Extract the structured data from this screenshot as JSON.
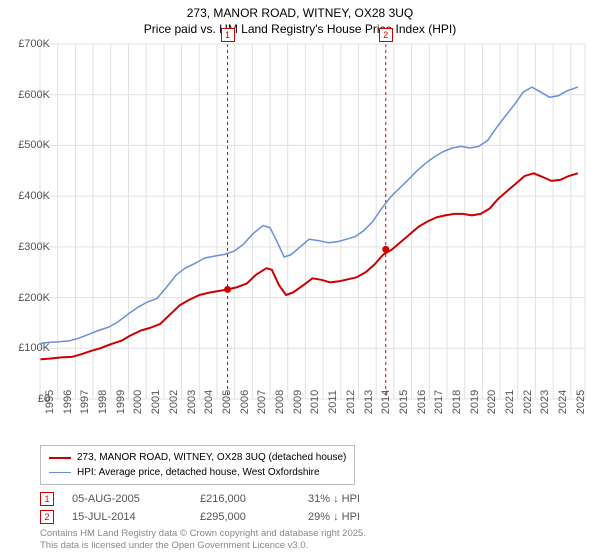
{
  "title": {
    "line1": "273, MANOR ROAD, WITNEY, OX28 3UQ",
    "line2": "Price paid vs. HM Land Registry's House Price Index (HPI)",
    "fontsize": 12
  },
  "chart": {
    "type": "line",
    "background_color": "#ffffff",
    "grid_color": "#e0e0e0",
    "x": {
      "min": 1995,
      "max": 2025.8,
      "ticks": [
        1995,
        1996,
        1997,
        1998,
        1999,
        2000,
        2001,
        2002,
        2003,
        2004,
        2005,
        2006,
        2007,
        2008,
        2009,
        2010,
        2011,
        2012,
        2013,
        2014,
        2015,
        2016,
        2017,
        2018,
        2019,
        2020,
        2021,
        2022,
        2023,
        2024,
        2025
      ],
      "label_fontsize": 11
    },
    "y": {
      "min": 0,
      "max": 700000,
      "ticks": [
        0,
        100000,
        200000,
        300000,
        400000,
        500000,
        600000,
        700000
      ],
      "tick_labels": [
        "£0",
        "£100K",
        "£200K",
        "£300K",
        "£400K",
        "£500K",
        "£600K",
        "£700K"
      ],
      "label_fontsize": 11
    },
    "series": [
      {
        "name": "price_paid",
        "label": "273, MANOR ROAD, WITNEY, OX28 3UQ (detached house)",
        "color": "#cc0000",
        "line_width": 2.0,
        "points": [
          [
            1995.0,
            78000
          ],
          [
            1995.7,
            80000
          ],
          [
            1996.2,
            82000
          ],
          [
            1996.8,
            83000
          ],
          [
            1997.3,
            88000
          ],
          [
            1997.9,
            95000
          ],
          [
            1998.4,
            100000
          ],
          [
            1999.0,
            108000
          ],
          [
            1999.6,
            115000
          ],
          [
            2000.1,
            125000
          ],
          [
            2000.7,
            135000
          ],
          [
            2001.2,
            140000
          ],
          [
            2001.8,
            148000
          ],
          [
            2002.3,
            165000
          ],
          [
            2002.9,
            185000
          ],
          [
            2003.4,
            195000
          ],
          [
            2004.0,
            205000
          ],
          [
            2004.6,
            210000
          ],
          [
            2005.1,
            213000
          ],
          [
            2005.6,
            216000
          ],
          [
            2006.1,
            220000
          ],
          [
            2006.7,
            228000
          ],
          [
            2007.2,
            245000
          ],
          [
            2007.8,
            258000
          ],
          [
            2008.1,
            255000
          ],
          [
            2008.5,
            225000
          ],
          [
            2008.9,
            205000
          ],
          [
            2009.3,
            210000
          ],
          [
            2009.9,
            225000
          ],
          [
            2010.4,
            238000
          ],
          [
            2010.9,
            235000
          ],
          [
            2011.4,
            230000
          ],
          [
            2011.9,
            232000
          ],
          [
            2012.4,
            236000
          ],
          [
            2012.9,
            240000
          ],
          [
            2013.4,
            250000
          ],
          [
            2013.9,
            265000
          ],
          [
            2014.4,
            285000
          ],
          [
            2014.9,
            295000
          ],
          [
            2015.4,
            310000
          ],
          [
            2015.9,
            325000
          ],
          [
            2016.4,
            340000
          ],
          [
            2016.9,
            350000
          ],
          [
            2017.4,
            358000
          ],
          [
            2017.9,
            362000
          ],
          [
            2018.4,
            365000
          ],
          [
            2018.9,
            365000
          ],
          [
            2019.4,
            362000
          ],
          [
            2019.9,
            365000
          ],
          [
            2020.4,
            375000
          ],
          [
            2020.9,
            395000
          ],
          [
            2021.4,
            410000
          ],
          [
            2021.9,
            425000
          ],
          [
            2022.4,
            440000
          ],
          [
            2022.9,
            445000
          ],
          [
            2023.4,
            438000
          ],
          [
            2023.9,
            430000
          ],
          [
            2024.4,
            432000
          ],
          [
            2024.9,
            440000
          ],
          [
            2025.4,
            445000
          ]
        ],
        "markers": [
          {
            "id": "1",
            "x": 2005.6,
            "y": 216000
          },
          {
            "id": "2",
            "x": 2014.54,
            "y": 295000
          }
        ]
      },
      {
        "name": "hpi",
        "label": "HPI: Average price, detached house, West Oxfordshire",
        "color": "#6a8fd8",
        "line_width": 1.5,
        "points": [
          [
            1995.0,
            110000
          ],
          [
            1995.6,
            112000
          ],
          [
            1996.1,
            113000
          ],
          [
            1996.7,
            115000
          ],
          [
            1997.2,
            120000
          ],
          [
            1997.8,
            128000
          ],
          [
            1998.3,
            135000
          ],
          [
            1998.9,
            142000
          ],
          [
            1999.4,
            152000
          ],
          [
            2000.0,
            168000
          ],
          [
            2000.5,
            180000
          ],
          [
            2001.0,
            190000
          ],
          [
            2001.6,
            198000
          ],
          [
            2002.1,
            218000
          ],
          [
            2002.7,
            245000
          ],
          [
            2003.2,
            258000
          ],
          [
            2003.8,
            268000
          ],
          [
            2004.3,
            278000
          ],
          [
            2004.9,
            282000
          ],
          [
            2005.4,
            285000
          ],
          [
            2006.0,
            292000
          ],
          [
            2006.5,
            305000
          ],
          [
            2007.0,
            325000
          ],
          [
            2007.6,
            342000
          ],
          [
            2008.0,
            338000
          ],
          [
            2008.4,
            310000
          ],
          [
            2008.8,
            280000
          ],
          [
            2009.2,
            285000
          ],
          [
            2009.7,
            300000
          ],
          [
            2010.2,
            315000
          ],
          [
            2010.8,
            312000
          ],
          [
            2011.3,
            308000
          ],
          [
            2011.8,
            310000
          ],
          [
            2012.3,
            315000
          ],
          [
            2012.8,
            320000
          ],
          [
            2013.3,
            332000
          ],
          [
            2013.8,
            350000
          ],
          [
            2014.3,
            375000
          ],
          [
            2014.8,
            398000
          ],
          [
            2015.3,
            415000
          ],
          [
            2015.8,
            432000
          ],
          [
            2016.3,
            450000
          ],
          [
            2016.8,
            465000
          ],
          [
            2017.3,
            478000
          ],
          [
            2017.8,
            488000
          ],
          [
            2018.3,
            495000
          ],
          [
            2018.8,
            498000
          ],
          [
            2019.3,
            495000
          ],
          [
            2019.8,
            498000
          ],
          [
            2020.3,
            510000
          ],
          [
            2020.8,
            535000
          ],
          [
            2021.3,
            558000
          ],
          [
            2021.8,
            580000
          ],
          [
            2022.3,
            605000
          ],
          [
            2022.8,
            615000
          ],
          [
            2023.3,
            605000
          ],
          [
            2023.8,
            595000
          ],
          [
            2024.3,
            598000
          ],
          [
            2024.8,
            608000
          ],
          [
            2025.4,
            615000
          ]
        ]
      }
    ],
    "event_lines": [
      {
        "id": "1",
        "x": 2005.6,
        "color": "#cc0000"
      },
      {
        "id": "2",
        "x": 2014.54,
        "color": "#cc0000"
      }
    ],
    "event_marker_top_labels": [
      {
        "id": "1",
        "x": 2005.6,
        "label": "1",
        "color": "#cc0000"
      },
      {
        "id": "2",
        "x": 2014.54,
        "label": "2",
        "color": "#cc0000"
      }
    ]
  },
  "legend": {
    "rows": [
      {
        "color": "#cc0000",
        "width": 2,
        "label": "273, MANOR ROAD, WITNEY, OX28 3UQ (detached house)"
      },
      {
        "color": "#6a8fd8",
        "width": 1.5,
        "label": "HPI: Average price, detached house, West Oxfordshire"
      }
    ],
    "fontsize": 10
  },
  "transactions": [
    {
      "marker": "1",
      "color": "#cc0000",
      "date": "05-AUG-2005",
      "price": "£216,000",
      "delta": "31% ↓ HPI"
    },
    {
      "marker": "2",
      "color": "#cc0000",
      "date": "15-JUL-2014",
      "price": "£295,000",
      "delta": "29% ↓ HPI"
    }
  ],
  "footer": {
    "line1": "Contains HM Land Registry data © Crown copyright and database right 2025.",
    "line2": "This data is licensed under the Open Government Licence v3.0."
  }
}
